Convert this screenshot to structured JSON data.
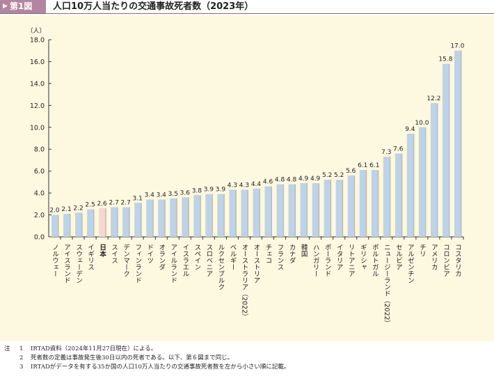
{
  "header": {
    "figure_label": "第1図",
    "title": "人口10万人当たりの交通事故死者数（2023年）"
  },
  "chart_data": {
    "type": "bar",
    "title": "人口10万人当たりの交通事故死者数（2023年）",
    "ylabel": "（人）",
    "ylim": [
      0,
      18
    ],
    "yticks": [
      "0.0",
      "2.0",
      "4.0",
      "6.0",
      "8.0",
      "10.0",
      "12.0",
      "14.0",
      "16.0",
      "18.0"
    ],
    "categories": [
      "ノルウェー",
      "アイスランド",
      "スウェーデン",
      "イギリス",
      "日本",
      "スイス",
      "デンマーク",
      "フィンランド",
      "ドイツ",
      "オランダ",
      "アイルランド",
      "イスラエル",
      "スペイン",
      "スロベニア",
      "ルクセンブルク",
      "ベルギー",
      "オーストラリア（2022）",
      "オーストリア",
      "チェコ",
      "フランス",
      "カナダ",
      "韓国",
      "ハンガリー",
      "ポーランド",
      "イタリア",
      "リトアニア",
      "ギリシャ",
      "ポルトガル",
      "ニュージーランド（2022）",
      "セルビア",
      "アルゼンチン",
      "チリ",
      "アメリカ",
      "コロンビア",
      "コスタリカ"
    ],
    "values": [
      2.0,
      2.1,
      2.2,
      2.5,
      2.6,
      2.7,
      2.7,
      3.1,
      3.4,
      3.4,
      3.5,
      3.6,
      3.8,
      3.9,
      3.9,
      4.3,
      4.3,
      4.4,
      4.6,
      4.8,
      4.8,
      4.9,
      4.9,
      5.2,
      5.2,
      5.6,
      6.1,
      6.1,
      7.3,
      7.6,
      9.4,
      10.0,
      12.2,
      15.8,
      17.0
    ],
    "highlight": "日本",
    "colors": {
      "bar": "#bcd3ea",
      "highlight": "#f8d6d2",
      "shadow": "#c9b99a"
    }
  },
  "notes": {
    "label": "注",
    "items": [
      {
        "n": "1",
        "text": "IRTAD資料（2024年11月27日現在）による。"
      },
      {
        "n": "2",
        "text": "死者数の定義は事故発生後30日以内の死者である。以下、第６図まで同じ。"
      },
      {
        "n": "3",
        "text": "IRTADがデータを有する35か国の人口10万人当たりの交通事故死者数を左から小さい順に記載。"
      }
    ]
  }
}
